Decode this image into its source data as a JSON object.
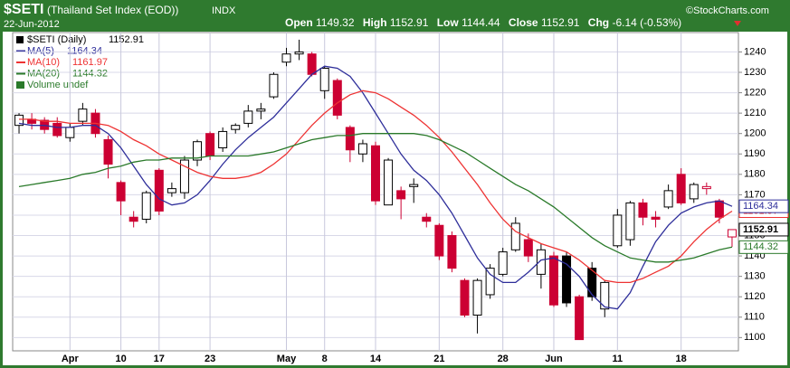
{
  "chart_data": {
    "type": "candlestick",
    "symbol": "$SETI",
    "subtitle": "(Thailand Set Index (EOD))",
    "exchange": "INDX",
    "date": "22-Jun-2012",
    "open_label": "Open",
    "high_label": "High",
    "low_label": "Low",
    "close_label": "Close",
    "chg_label": "Chg",
    "change": "-6.14 (-0.53%)",
    "credit": "©StockCharts.com",
    "name": "$SETI (Daily)",
    "volume_label": "Volume undef",
    "categories": [
      null,
      null,
      null,
      null,
      "Apr",
      null,
      null,
      null,
      "10",
      null,
      null,
      "17",
      null,
      null,
      null,
      "23",
      null,
      null,
      null,
      null,
      null,
      "May",
      null,
      null,
      "8",
      null,
      null,
      null,
      "14",
      null,
      null,
      null,
      null,
      "21",
      null,
      null,
      null,
      null,
      "28",
      null,
      null,
      null,
      "Jun",
      null,
      null,
      null,
      null,
      "11",
      null,
      null,
      null,
      null,
      "18",
      null,
      null,
      null,
      null
    ],
    "open": [
      1204,
      1207,
      1206.5,
      1205,
      1198,
      1206,
      1210,
      1197,
      1176,
      1159,
      1158,
      1182,
      1171,
      1171,
      1187,
      1200,
      1193,
      1202,
      1205,
      1211,
      1218,
      1235,
      1239,
      1239,
      1221,
      1226,
      1203,
      1190,
      1194,
      1165,
      1172,
      1174,
      1159,
      1155,
      1150,
      1128,
      1111,
      1121,
      1131,
      1143,
      1148,
      1131,
      1140,
      1140,
      1120,
      1134,
      1114,
      1145,
      1148,
      1166,
      1159,
      1164,
      1180,
      1168,
      1173,
      1167,
      1149.32
    ],
    "high": [
      1210,
      1210,
      1208,
      1208,
      1205,
      1215,
      1212,
      1199,
      1177,
      1162,
      1172,
      1183,
      1176,
      1189,
      1197,
      1201,
      1203,
      1205,
      1214,
      1215,
      1230,
      1242,
      1246,
      1240,
      1233,
      1227,
      1204,
      1197,
      1196,
      1188,
      1174,
      1178,
      1161,
      1156,
      1152,
      1129,
      1129,
      1136,
      1144,
      1159,
      1151,
      1146,
      1142,
      1142,
      1121,
      1137,
      1128,
      1163,
      1167,
      1168,
      1162,
      1175,
      1183,
      1176,
      1176,
      1168,
      1152.91
    ],
    "low": [
      1200,
      1202,
      1200,
      1198,
      1196,
      1204,
      1198,
      1178,
      1160,
      1154,
      1156,
      1160,
      1169,
      1168,
      1184,
      1187,
      1191,
      1200,
      1203,
      1207,
      1217,
      1233,
      1236,
      1228,
      1217,
      1207,
      1186,
      1186,
      1165,
      1165,
      1158,
      1166,
      1154,
      1138,
      1132,
      1110,
      1102,
      1119,
      1130,
      1142,
      1137,
      1124,
      1115,
      1115,
      1099,
      1118,
      1110,
      1144,
      1145,
      1155,
      1154,
      1163,
      1165,
      1166,
      1170,
      1156,
      1144.44
    ],
    "close": [
      1209,
      1205,
      1202,
      1199,
      1203,
      1212,
      1200,
      1185,
      1167,
      1157,
      1171,
      1162,
      1173,
      1187,
      1196,
      1189,
      1201,
      1204,
      1211,
      1212,
      1229,
      1239,
      1240,
      1229,
      1232,
      1209,
      1192,
      1195,
      1167,
      1187,
      1168,
      1175,
      1157,
      1140,
      1134,
      1111,
      1128,
      1134,
      1142,
      1156,
      1140,
      1143,
      1116,
      1117,
      1099,
      1120,
      1127,
      1160,
      1166,
      1159,
      1158,
      1172,
      1166,
      1175,
      1174,
      1159,
      1152.91
    ],
    "up_color": "#000000",
    "down_color": "#cc0033",
    "overlays": [
      {
        "name": "MA(5)",
        "color": "#2e2e9a",
        "values": [
          1205,
          1204,
          1204,
          1203,
          1203,
          1204,
          1204,
          1200,
          1193,
          1184,
          1175,
          1168,
          1165,
          1166,
          1170,
          1177,
          1185,
          1192,
          1198,
          1203,
          1208,
          1215,
          1222,
          1229,
          1233,
          1232,
          1228,
          1220,
          1210,
          1200,
          1190,
          1182,
          1177,
          1170,
          1161,
          1150,
          1139,
          1131,
          1127,
          1127,
          1132,
          1138,
          1139,
          1136,
          1130,
          1121,
          1115,
          1114,
          1122,
          1135,
          1147,
          1155,
          1161,
          1164,
          1166,
          1167,
          1164.34
        ]
      },
      {
        "name": "MA(10)",
        "color": "#ee3333",
        "values": [
          1207,
          1207,
          1206,
          1206,
          1205,
          1205,
          1205,
          1204,
          1201,
          1197,
          1194,
          1190,
          1187,
          1184,
          1181,
          1179,
          1178,
          1178,
          1179,
          1181,
          1185,
          1190,
          1197,
          1204,
          1210,
          1215,
          1219,
          1221,
          1220,
          1217,
          1213,
          1209,
          1204,
          1198,
          1191,
          1183,
          1175,
          1166,
          1158,
          1152,
          1149,
          1146,
          1144,
          1142,
          1138,
          1133,
          1128,
          1127,
          1127,
          1129,
          1132,
          1135,
          1140,
          1147,
          1153,
          1158,
          1161.97
        ]
      },
      {
        "name": "MA(20)",
        "color": "#2a7a2a",
        "values": [
          1174,
          1175,
          1176,
          1177,
          1178,
          1180,
          1181,
          1183,
          1184,
          1186,
          1187,
          1187,
          1188,
          1188,
          1188,
          1189,
          1189,
          1189,
          1189,
          1190,
          1191,
          1193,
          1195,
          1197,
          1198,
          1199,
          1199,
          1200,
          1200,
          1200,
          1200,
          1200,
          1199,
          1197,
          1194,
          1191,
          1187,
          1183,
          1179,
          1175,
          1172,
          1168,
          1164,
          1159,
          1154,
          1149,
          1145,
          1142,
          1139,
          1138,
          1137,
          1137,
          1138,
          1139,
          1141,
          1143,
          1144.32
        ]
      }
    ],
    "ylim": [
      1093.5,
      1249.5
    ],
    "yticks": [
      1100,
      1110,
      1120,
      1130,
      1140,
      1150,
      1160,
      1170,
      1180,
      1190,
      1200,
      1210,
      1220,
      1230,
      1240
    ],
    "grid": true
  }
}
